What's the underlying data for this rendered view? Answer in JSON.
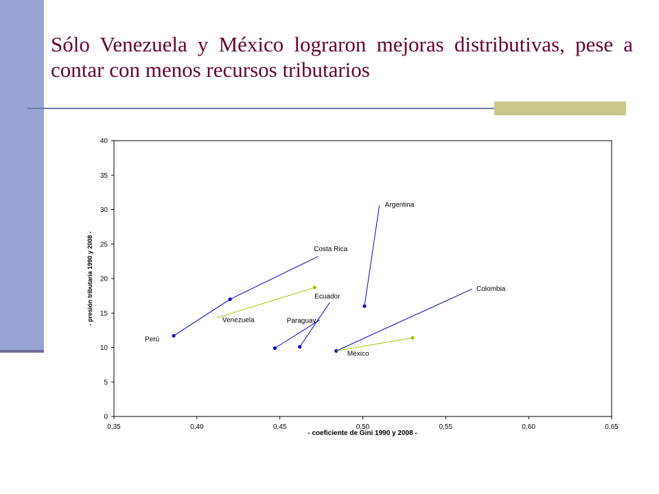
{
  "slide": {
    "title": "Sólo Venezuela y México lograron mejoras distributivas, pese a contar con menos recursos tributarios"
  },
  "colors": {
    "sidebar": "#98a4d4",
    "title": "#660033",
    "rule": "#6f7ab3",
    "accent": "#c8c88a",
    "series_blue": "#0000cc",
    "series_green": "#99cc00"
  },
  "chart_data": {
    "type": "scatter",
    "xlabel": "- coeficiente de Gini 1990 y 2008 -",
    "ylabel": "- presión tributaria 1990 y 2008 -",
    "xlim": [
      0.35,
      0.65
    ],
    "ylim": [
      0,
      40
    ],
    "xticks": [
      "0,35",
      "0,40",
      "0,45",
      "0,50",
      "0,55",
      "0,60",
      "0,65"
    ],
    "yticks": [
      "0",
      "5",
      "10",
      "15",
      "20",
      "25",
      "30",
      "35",
      "40"
    ],
    "grid": false,
    "legend": "none",
    "series": [
      {
        "label": "Perú",
        "color": "blue",
        "x": [
          0.386,
          0.42
        ],
        "y": [
          11.7,
          17.0
        ]
      },
      {
        "label": "Costa Rica",
        "color": "blue",
        "x": [
          0.42,
          0.473
        ],
        "y": [
          17.0,
          23.2
        ]
      },
      {
        "label": "Venezuela",
        "color": "green",
        "x": [
          0.412,
          0.471
        ],
        "y": [
          14.3,
          18.7
        ]
      },
      {
        "label": "Paraguay",
        "color": "blue",
        "x": [
          0.447,
          0.474
        ],
        "y": [
          9.9,
          14.0
        ]
      },
      {
        "label": "Ecuador",
        "color": "blue",
        "x": [
          0.462,
          0.48
        ],
        "y": [
          10.1,
          16.5
        ]
      },
      {
        "label": "Argentina",
        "color": "blue",
        "x": [
          0.501,
          0.51
        ],
        "y": [
          16.0,
          30.6
        ]
      },
      {
        "label": "Colombia",
        "color": "blue",
        "x": [
          0.484,
          0.566
        ],
        "y": [
          9.5,
          18.5
        ]
      },
      {
        "label": "México",
        "color": "green",
        "x": [
          0.484,
          0.53
        ],
        "y": [
          9.5,
          11.4
        ]
      }
    ]
  }
}
